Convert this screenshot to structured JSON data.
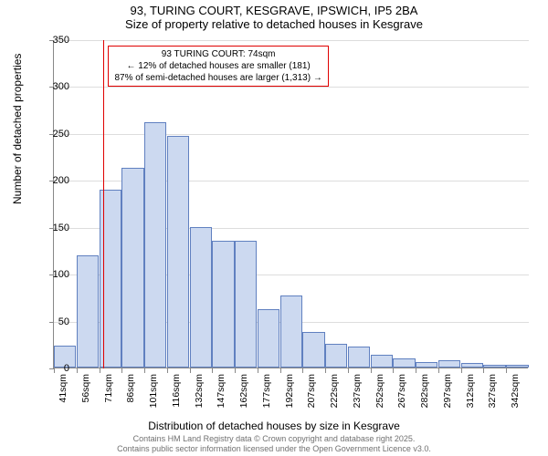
{
  "title": {
    "line1": "93, TURING COURT, KESGRAVE, IPSWICH, IP5 2BA",
    "line2": "Size of property relative to detached houses in Kesgrave"
  },
  "chart": {
    "type": "bar",
    "ylabel": "Number of detached properties",
    "xlabel": "Distribution of detached houses by size in Kesgrave",
    "ylim": [
      0,
      350
    ],
    "ytick_step": 50,
    "yticks": [
      0,
      50,
      100,
      150,
      200,
      250,
      300,
      350
    ],
    "bar_fill": "#ccd9f0",
    "bar_stroke": "#6080c0",
    "grid_color": "#dddddd",
    "background_color": "#ffffff",
    "marker_color": "#e00000",
    "marker_x_value": 74,
    "x_start": 41,
    "x_step": 15,
    "x_label_step": 15,
    "categories": [
      "41sqm",
      "56sqm",
      "71sqm",
      "86sqm",
      "101sqm",
      "116sqm",
      "132sqm",
      "147sqm",
      "162sqm",
      "177sqm",
      "192sqm",
      "207sqm",
      "222sqm",
      "237sqm",
      "252sqm",
      "267sqm",
      "282sqm",
      "297sqm",
      "312sqm",
      "327sqm",
      "342sqm"
    ],
    "values": [
      23,
      120,
      190,
      213,
      262,
      247,
      150,
      135,
      135,
      62,
      77,
      38,
      25,
      22,
      14,
      10,
      6,
      8,
      5,
      3,
      3
    ],
    "label_fontsize": 12,
    "tick_fontsize": 11
  },
  "info_box": {
    "line1": "93 TURING COURT: 74sqm",
    "line2": "← 12% of detached houses are smaller (181)",
    "line3": "87% of semi-detached houses are larger (1,313) →"
  },
  "footer": {
    "line1": "Contains HM Land Registry data © Crown copyright and database right 2025.",
    "line2": "Contains public sector information licensed under the Open Government Licence v3.0."
  }
}
